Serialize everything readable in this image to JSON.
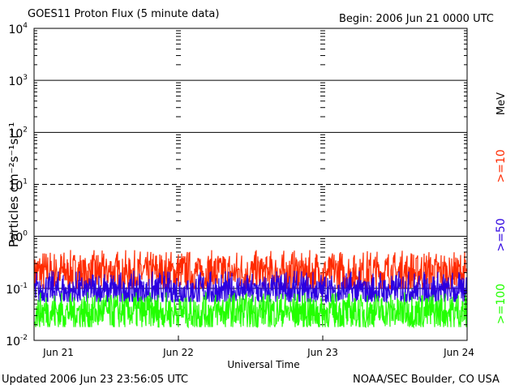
{
  "header": {
    "title": "GOES11 Proton Flux (5 minute data)",
    "begin": "Begin: 2006 Jun 21 0000 UTC"
  },
  "footer": {
    "updated": "Updated 2006 Jun 23 23:56:05 UTC",
    "source": "NOAA/SEC Boulder, CO USA"
  },
  "chart_data": {
    "type": "line",
    "title": "GOES11 Proton Flux (5 minute data)",
    "xlabel": "Universal Time",
    "ylabel": "Particles cm⁻²s⁻¹sr⁻¹",
    "yscale": "log",
    "ylim": [
      0.01,
      10000
    ],
    "y_ticks": [
      {
        "value": 0.01,
        "base": "10",
        "exp": "-2"
      },
      {
        "value": 0.1,
        "base": "10",
        "exp": "-1"
      },
      {
        "value": 1,
        "base": "10",
        "exp": "0"
      },
      {
        "value": 10,
        "base": "10",
        "exp": "1"
      },
      {
        "value": 100,
        "base": "10",
        "exp": "2"
      },
      {
        "value": 1000,
        "base": "10",
        "exp": "3"
      },
      {
        "value": 10000,
        "base": "10",
        "exp": "4"
      }
    ],
    "x_ticks": [
      "Jun 21",
      "Jun 22",
      "Jun 23",
      "Jun 24"
    ],
    "xlim_days": [
      0,
      3
    ],
    "threshold_lines": [
      {
        "value": 10,
        "style": "dashed"
      }
    ],
    "unit_label": "MeV",
    "series": [
      {
        "name": ">=10",
        "color": "#ff2a00",
        "typical": 0.2,
        "min": 0.1,
        "max": 0.55
      },
      {
        "name": ">=50",
        "color": "#2b00e0",
        "typical": 0.09,
        "min": 0.055,
        "max": 0.22
      },
      {
        "name": ">=100",
        "color": "#22ff00",
        "typical": 0.035,
        "min": 0.018,
        "max": 0.085
      }
    ],
    "grid": true
  }
}
